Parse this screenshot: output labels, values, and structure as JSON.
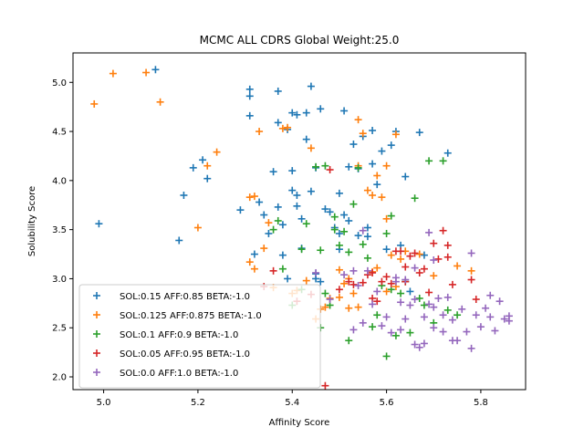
{
  "chart_data": {
    "type": "scatter",
    "title": "MCMC ALL CDRS Global Weight:25.0",
    "xlabel": "Affinity Score",
    "ylabel": "Solubility Score",
    "xlim": [
      4.935,
      5.895
    ],
    "ylim": [
      1.87,
      5.3
    ],
    "xticks": [
      "5.0",
      "5.2",
      "5.4",
      "5.6",
      "5.8"
    ],
    "yticks": [
      "2.0",
      "2.5",
      "3.0",
      "3.5",
      "4.0",
      "4.5",
      "5.0"
    ],
    "legend_position": "lower-left",
    "marker": "plus",
    "series": [
      {
        "name": "SOL:0.15 AFF:0.85 BETA:-1.0",
        "color": "#1f77b4",
        "points": [
          [
            4.99,
            3.56
          ],
          [
            5.11,
            5.13
          ],
          [
            5.16,
            3.39
          ],
          [
            5.17,
            3.85
          ],
          [
            5.19,
            4.13
          ],
          [
            5.21,
            4.21
          ],
          [
            5.22,
            4.02
          ],
          [
            5.29,
            3.7
          ],
          [
            5.31,
            4.93
          ],
          [
            5.31,
            4.86
          ],
          [
            5.31,
            4.66
          ],
          [
            5.32,
            3.25
          ],
          [
            5.33,
            3.78
          ],
          [
            5.34,
            3.65
          ],
          [
            5.35,
            3.46
          ],
          [
            5.36,
            4.09
          ],
          [
            5.37,
            4.91
          ],
          [
            5.37,
            4.59
          ],
          [
            5.37,
            3.73
          ],
          [
            5.38,
            3.55
          ],
          [
            5.38,
            3.24
          ],
          [
            5.39,
            4.52
          ],
          [
            5.4,
            4.69
          ],
          [
            5.4,
            4.1
          ],
          [
            5.4,
            3.9
          ],
          [
            5.41,
            4.67
          ],
          [
            5.41,
            3.85
          ],
          [
            5.41,
            3.74
          ],
          [
            5.42,
            3.61
          ],
          [
            5.42,
            3.31
          ],
          [
            5.43,
            4.69
          ],
          [
            5.43,
            4.42
          ],
          [
            5.44,
            4.96
          ],
          [
            5.44,
            3.89
          ],
          [
            5.45,
            4.13
          ],
          [
            5.45,
            3.05
          ],
          [
            5.46,
            4.73
          ],
          [
            5.47,
            3.71
          ],
          [
            5.48,
            3.68
          ],
          [
            5.49,
            3.52
          ],
          [
            5.5,
            3.87
          ],
          [
            5.5,
            3.46
          ],
          [
            5.5,
            3.3
          ],
          [
            5.51,
            4.71
          ],
          [
            5.51,
            3.65
          ],
          [
            5.52,
            4.14
          ],
          [
            5.52,
            3.59
          ],
          [
            5.53,
            4.37
          ],
          [
            5.54,
            4.12
          ],
          [
            5.54,
            3.44
          ],
          [
            5.55,
            4.45
          ],
          [
            5.56,
            3.52
          ],
          [
            5.56,
            3.43
          ],
          [
            5.57,
            4.51
          ],
          [
            5.57,
            4.17
          ],
          [
            5.58,
            3.96
          ],
          [
            5.59,
            4.3
          ],
          [
            5.6,
            3.3
          ],
          [
            5.61,
            4.36
          ],
          [
            5.62,
            4.5
          ],
          [
            5.63,
            3.34
          ],
          [
            5.64,
            4.04
          ],
          [
            5.65,
            2.87
          ],
          [
            5.67,
            4.49
          ],
          [
            5.68,
            3.24
          ],
          [
            5.73,
            4.28
          ],
          [
            5.45,
            3.0
          ],
          [
            5.46,
            2.97
          ],
          [
            5.39,
            3.0
          ]
        ]
      },
      {
        "name": "SOL:0.125 AFF:0.875 BETA:-1.0",
        "color": "#ff7f0e",
        "points": [
          [
            4.98,
            4.78
          ],
          [
            5.02,
            5.09
          ],
          [
            5.09,
            5.1
          ],
          [
            5.12,
            4.8
          ],
          [
            5.2,
            3.52
          ],
          [
            5.22,
            4.15
          ],
          [
            5.24,
            4.29
          ],
          [
            5.31,
            3.83
          ],
          [
            5.31,
            3.17
          ],
          [
            5.32,
            3.84
          ],
          [
            5.32,
            3.1
          ],
          [
            5.33,
            4.5
          ],
          [
            5.34,
            3.31
          ],
          [
            5.35,
            3.57
          ],
          [
            5.36,
            2.91
          ],
          [
            5.38,
            4.53
          ],
          [
            5.39,
            4.54
          ],
          [
            5.4,
            2.85
          ],
          [
            5.41,
            2.88
          ],
          [
            5.43,
            2.98
          ],
          [
            5.44,
            4.33
          ],
          [
            5.46,
            2.69
          ],
          [
            5.47,
            2.71
          ],
          [
            5.48,
            2.8
          ],
          [
            5.5,
            3.09
          ],
          [
            5.5,
            2.81
          ],
          [
            5.51,
            2.95
          ],
          [
            5.52,
            3.0
          ],
          [
            5.52,
            2.7
          ],
          [
            5.53,
            2.85
          ],
          [
            5.54,
            4.62
          ],
          [
            5.54,
            4.15
          ],
          [
            5.55,
            4.48
          ],
          [
            5.56,
            3.9
          ],
          [
            5.57,
            3.85
          ],
          [
            5.57,
            3.07
          ],
          [
            5.58,
            4.05
          ],
          [
            5.58,
            3.11
          ],
          [
            5.59,
            3.83
          ],
          [
            5.6,
            4.15
          ],
          [
            5.6,
            2.87
          ],
          [
            5.61,
            3.24
          ],
          [
            5.62,
            4.47
          ],
          [
            5.62,
            2.92
          ],
          [
            5.63,
            3.2
          ],
          [
            5.64,
            3.28
          ],
          [
            5.67,
            3.25
          ],
          [
            5.7,
            3.03
          ],
          [
            5.75,
            3.13
          ],
          [
            5.78,
            3.08
          ],
          [
            5.45,
            2.59
          ],
          [
            5.54,
            2.71
          ],
          [
            5.6,
            3.61
          ]
        ]
      },
      {
        "name": "SOL:0.1 AFF:0.9 BETA:-1.0",
        "color": "#2ca02c",
        "points": [
          [
            5.36,
            3.5
          ],
          [
            5.37,
            3.59
          ],
          [
            5.38,
            3.1
          ],
          [
            5.4,
            2.73
          ],
          [
            5.42,
            3.3
          ],
          [
            5.42,
            2.89
          ],
          [
            5.43,
            3.56
          ],
          [
            5.45,
            4.14
          ],
          [
            5.46,
            3.29
          ],
          [
            5.47,
            4.15
          ],
          [
            5.47,
            2.85
          ],
          [
            5.48,
            2.73
          ],
          [
            5.49,
            3.63
          ],
          [
            5.49,
            3.5
          ],
          [
            5.5,
            3.34
          ],
          [
            5.51,
            3.48
          ],
          [
            5.52,
            3.27
          ],
          [
            5.52,
            2.37
          ],
          [
            5.53,
            3.76
          ],
          [
            5.54,
            4.13
          ],
          [
            5.55,
            3.35
          ],
          [
            5.56,
            3.21
          ],
          [
            5.57,
            2.51
          ],
          [
            5.58,
            2.63
          ],
          [
            5.59,
            2.93
          ],
          [
            5.6,
            3.46
          ],
          [
            5.61,
            3.64
          ],
          [
            5.61,
            2.89
          ],
          [
            5.62,
            2.42
          ],
          [
            5.63,
            2.85
          ],
          [
            5.64,
            2.97
          ],
          [
            5.65,
            2.45
          ],
          [
            5.66,
            3.82
          ],
          [
            5.67,
            2.8
          ],
          [
            5.68,
            2.73
          ],
          [
            5.69,
            4.2
          ],
          [
            5.7,
            2.55
          ],
          [
            5.72,
            4.2
          ],
          [
            5.73,
            2.68
          ],
          [
            5.75,
            2.63
          ],
          [
            5.6,
            2.21
          ],
          [
            5.46,
            2.5
          ]
        ]
      },
      {
        "name": "SOL:0.05 AFF:0.95 BETA:-1.0",
        "color": "#d62728",
        "points": [
          [
            5.34,
            2.92
          ],
          [
            5.36,
            3.08
          ],
          [
            5.41,
            2.77
          ],
          [
            5.44,
            2.84
          ],
          [
            5.47,
            1.91
          ],
          [
            5.48,
            4.11
          ],
          [
            5.5,
            2.89
          ],
          [
            5.52,
            2.97
          ],
          [
            5.53,
            2.94
          ],
          [
            5.55,
            2.96
          ],
          [
            5.57,
            2.8
          ],
          [
            5.57,
            3.06
          ],
          [
            5.58,
            2.77
          ],
          [
            5.59,
            2.97
          ],
          [
            5.6,
            3.02
          ],
          [
            5.61,
            2.95
          ],
          [
            5.62,
            3.28
          ],
          [
            5.63,
            3.28
          ],
          [
            5.64,
            2.97
          ],
          [
            5.65,
            3.23
          ],
          [
            5.66,
            3.26
          ],
          [
            5.67,
            3.06
          ],
          [
            5.68,
            3.1
          ],
          [
            5.69,
            2.86
          ],
          [
            5.7,
            3.36
          ],
          [
            5.71,
            3.2
          ],
          [
            5.72,
            3.49
          ],
          [
            5.73,
            3.22
          ],
          [
            5.74,
            2.94
          ],
          [
            5.78,
            2.99
          ],
          [
            5.79,
            2.79
          ],
          [
            5.56,
            3.04
          ],
          [
            5.64,
            3.12
          ],
          [
            5.73,
            3.34
          ]
        ]
      },
      {
        "name": "SOL:0.0 AFF:1.0 BETA:-1.0",
        "color": "#9467bd",
        "points": [
          [
            5.45,
            3.06
          ],
          [
            5.48,
            2.79
          ],
          [
            5.51,
            3.04
          ],
          [
            5.53,
            3.08
          ],
          [
            5.53,
            2.48
          ],
          [
            5.54,
            2.93
          ],
          [
            5.55,
            3.49
          ],
          [
            5.55,
            2.55
          ],
          [
            5.56,
            3.08
          ],
          [
            5.57,
            2.74
          ],
          [
            5.58,
            2.87
          ],
          [
            5.59,
            2.52
          ],
          [
            5.6,
            2.61
          ],
          [
            5.61,
            2.45
          ],
          [
            5.62,
            3.01
          ],
          [
            5.62,
            2.97
          ],
          [
            5.63,
            2.76
          ],
          [
            5.64,
            2.59
          ],
          [
            5.64,
            2.99
          ],
          [
            5.65,
            2.73
          ],
          [
            5.66,
            3.11
          ],
          [
            5.66,
            2.79
          ],
          [
            5.67,
            2.3
          ],
          [
            5.68,
            2.34
          ],
          [
            5.68,
            2.61
          ],
          [
            5.69,
            2.74
          ],
          [
            5.69,
            3.47
          ],
          [
            5.7,
            2.71
          ],
          [
            5.7,
            2.5
          ],
          [
            5.71,
            2.8
          ],
          [
            5.72,
            2.63
          ],
          [
            5.72,
            2.46
          ],
          [
            5.73,
            2.81
          ],
          [
            5.74,
            2.58
          ],
          [
            5.75,
            2.37
          ],
          [
            5.76,
            2.69
          ],
          [
            5.77,
            2.46
          ],
          [
            5.78,
            3.26
          ],
          [
            5.78,
            2.29
          ],
          [
            5.79,
            2.63
          ],
          [
            5.8,
            2.51
          ],
          [
            5.81,
            2.7
          ],
          [
            5.82,
            2.83
          ],
          [
            5.82,
            2.61
          ],
          [
            5.83,
            2.47
          ],
          [
            5.84,
            2.77
          ],
          [
            5.85,
            2.59
          ],
          [
            5.86,
            2.62
          ],
          [
            5.86,
            2.57
          ],
          [
            5.74,
            2.37
          ],
          [
            5.63,
            2.48
          ],
          [
            5.66,
            2.33
          ],
          [
            5.7,
            3.19
          ]
        ]
      }
    ]
  }
}
